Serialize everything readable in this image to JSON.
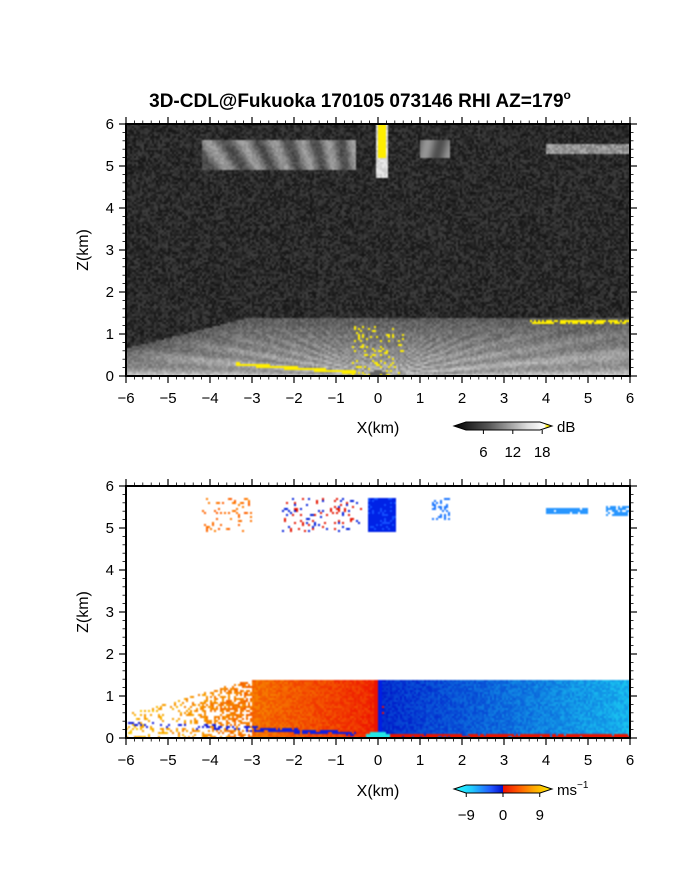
{
  "chart_data": [
    {
      "type": "heatmap",
      "title": "3D-CDL@Fukuoka 170105 073146 RHI AZ=179",
      "title_superscript": "o",
      "xlabel": "X(km)",
      "ylabel": "Z(km)",
      "xlim": [
        -6,
        6
      ],
      "ylim": [
        0,
        6
      ],
      "xticks": [
        "-6",
        "-5",
        "-4",
        "-3",
        "-2",
        "-1",
        "0",
        "1",
        "2",
        "3",
        "4",
        "5",
        "6"
      ],
      "yticks": [
        "0",
        "1",
        "2",
        "3",
        "4",
        "5",
        "6"
      ],
      "colormap": "grayscale-yellow",
      "colorbar": {
        "unit": "dB",
        "ticks": [
          "6",
          "12",
          "18"
        ],
        "range": [
          0,
          20
        ]
      },
      "features": {
        "boundary_layer_top_km": 1.4,
        "noise_floor_dB": 3,
        "vertical_beam_max_dB": 20,
        "cloud_layer_km": [
          4.9,
          5.6
        ]
      }
    },
    {
      "type": "heatmap",
      "xlabel": "X(km)",
      "ylabel": "Z(km)",
      "xlim": [
        -6,
        6
      ],
      "ylim": [
        0,
        6
      ],
      "xticks": [
        "-6",
        "-5",
        "-4",
        "-3",
        "-2",
        "-1",
        "0",
        "1",
        "2",
        "3",
        "4",
        "5",
        "6"
      ],
      "yticks": [
        "0",
        "1",
        "2",
        "3",
        "4",
        "5",
        "6"
      ],
      "colormap": "blue-cyan-red-yellow",
      "colorbar": {
        "unit": "ms",
        "unit_superscript": "−1",
        "ticks": [
          "−9",
          "0",
          "9"
        ],
        "range": [
          -12,
          12
        ]
      },
      "features": {
        "boundary_layer_top_km": 1.4,
        "velocity_left_ms": 8,
        "velocity_right_ms": -7,
        "cloud_layer_km": [
          4.9,
          5.6
        ]
      }
    }
  ],
  "colors": {
    "bar_yellow": "#ffee00",
    "blue": "#0022ee",
    "cyan": "#22ffff",
    "red": "#ee1100",
    "orange": "#ff8800"
  }
}
